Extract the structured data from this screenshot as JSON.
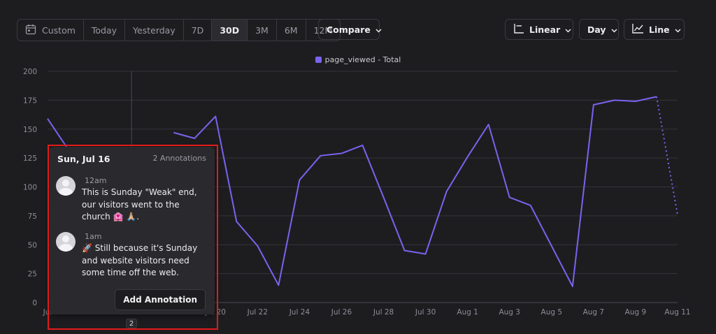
{
  "toolbar": {
    "custom_label": "Custom",
    "ranges": [
      "Today",
      "Yesterday",
      "7D",
      "30D",
      "3M",
      "6M",
      "12M"
    ],
    "active_range": "30D",
    "compare_label": "Compare",
    "scale_label": "Linear",
    "interval_label": "Day",
    "chart_type_label": "Line"
  },
  "tooltip": {
    "date": "Sun, Jul 16",
    "count": "2 Annotations",
    "annotations": [
      {
        "time": "12am",
        "text": "This is Sunday \"Weak\" end, our visitors went to the church 🏩 🙏🏼."
      },
      {
        "time": "1am",
        "text": "🚀 Still because it's Sunday and website visitors need some time off the web."
      }
    ],
    "add_button": "Add Annotation"
  },
  "annotation_marker": "2",
  "chart_data": {
    "type": "line",
    "series": [
      {
        "name": "page_viewed - Total",
        "color": "#7a63ee",
        "values": [
          159,
          132,
          null,
          null,
          null,
          null,
          147,
          142,
          161,
          70,
          49,
          15,
          106,
          127,
          129,
          136,
          91,
          45,
          42,
          96,
          126,
          154,
          91,
          84,
          49,
          14,
          171,
          175,
          174,
          178,
          76
        ]
      }
    ],
    "x": [
      "Jul 12",
      "Jul 13",
      "Jul 14",
      "Jul 15",
      "Jul 16",
      "Jul 17",
      "Jul 18",
      "Jul 19",
      "Jul 20",
      "Jul 21",
      "Jul 22",
      "Jul 23",
      "Jul 24",
      "Jul 25",
      "Jul 26",
      "Jul 27",
      "Jul 28",
      "Jul 29",
      "Jul 30",
      "Jul 31",
      "Aug 1",
      "Aug 2",
      "Aug 3",
      "Aug 4",
      "Aug 5",
      "Aug 6",
      "Aug 7",
      "Aug 8",
      "Aug 9",
      "Aug 10",
      "Aug 11"
    ],
    "x_tick_labels": [
      "Jul 20",
      "Jul 22",
      "Jul 24",
      "Jul 26",
      "Jul 28",
      "Jul 30",
      "Aug 1",
      "Aug 3",
      "Aug 5",
      "Aug 7",
      "Aug 9",
      "Aug 11"
    ],
    "partial_visible_tick": "Jul",
    "y_ticks": [
      0,
      25,
      50,
      75,
      100,
      125,
      150,
      175,
      200
    ],
    "ylim": [
      0,
      200
    ],
    "incomplete_last_point": true,
    "highlighted_date": "Jul 16",
    "grid": true,
    "legend_position": "top-center"
  }
}
